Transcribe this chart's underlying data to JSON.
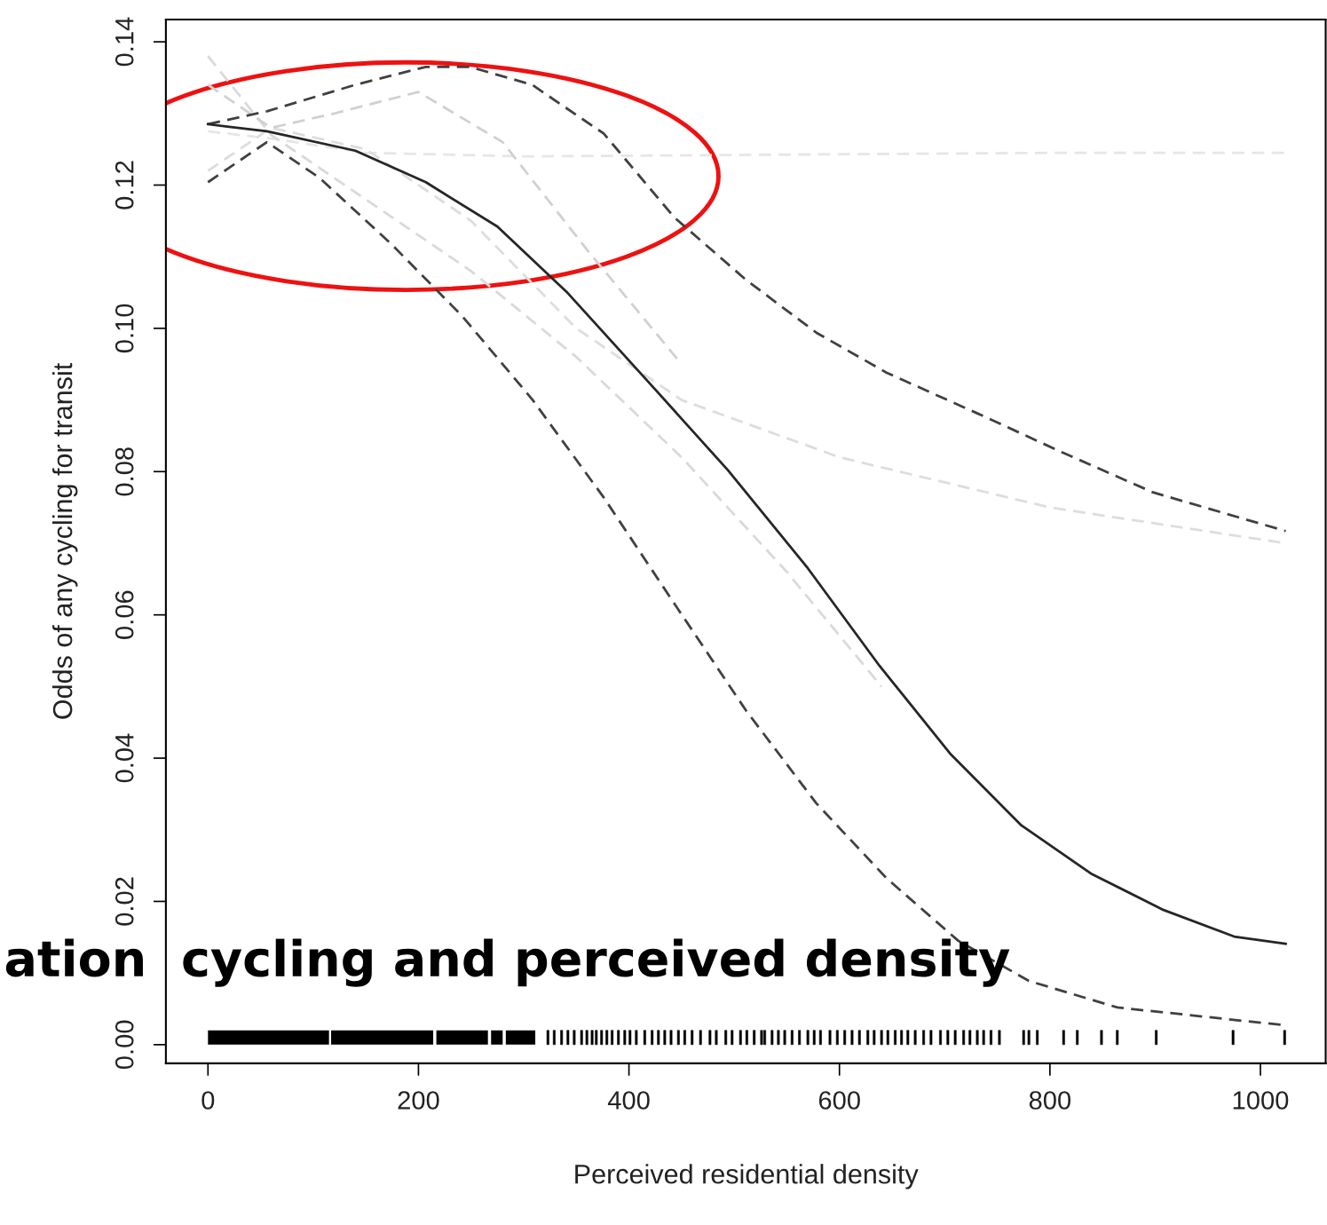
{
  "chart_data": {
    "type": "line",
    "xlabel": "Perceived residential density",
    "ylabel": "Odds of any cycling for transit",
    "annotations": [
      "ation  cycling and perceived density"
    ],
    "xlim": [
      -40,
      1062
    ],
    "ylim": [
      -0.0026,
      0.1431
    ],
    "xticks": [
      0,
      200,
      400,
      600,
      800,
      1000
    ],
    "yticks": [
      {
        "value": 0,
        "label": "0.00"
      },
      {
        "value": 0.02,
        "label": "0.02"
      },
      {
        "value": 0.04,
        "label": "0.04"
      },
      {
        "value": 0.06,
        "label": "0.06"
      },
      {
        "value": 0.08,
        "label": "0.08"
      },
      {
        "value": 0.1,
        "label": "0.10"
      },
      {
        "value": 0.12,
        "label": "0.12"
      },
      {
        "value": 0.14,
        "label": "0.14"
      }
    ],
    "grid": false,
    "series": [
      {
        "color": "#e6e6e6",
        "line_style": "dashed",
        "x": [
          0,
          60,
          150,
          300,
          500,
          800,
          1024
        ],
        "values": [
          0.1275,
          0.1265,
          0.1245,
          0.124,
          0.1242,
          0.1245,
          0.1245
        ]
      },
      {
        "color": "#d9d9d9",
        "line_style": "dashed",
        "x": [
          0,
          60,
          150,
          250,
          350,
          450,
          550,
          640
        ],
        "values": [
          0.138,
          0.127,
          0.118,
          0.108,
          0.096,
          0.082,
          0.066,
          0.05
        ]
      },
      {
        "color": "#dddddd",
        "line_style": "dashed",
        "x": [
          0,
          60,
          150,
          250,
          350,
          450,
          600,
          800,
          1024
        ],
        "values": [
          0.122,
          0.128,
          0.125,
          0.115,
          0.1,
          0.09,
          0.082,
          0.075,
          0.07
        ]
      },
      {
        "color": "#d0d0d0",
        "line_style": "dashed",
        "x": [
          0,
          60,
          120,
          200,
          280,
          360,
          450
        ],
        "values": [
          0.134,
          0.128,
          0.13,
          0.133,
          0.126,
          0.111,
          0.095
        ]
      },
      {
        "color": "#404040",
        "line_style": "dashed",
        "x": [
          0,
          56,
          140,
          207,
          249,
          308,
          376,
          443,
          511,
          578,
          645,
          730,
          813,
          898,
          1024
        ],
        "values": [
          0.1285,
          0.1303,
          0.134,
          0.1365,
          0.1365,
          0.134,
          0.1272,
          0.1155,
          0.1068,
          0.0994,
          0.0938,
          0.0882,
          0.0826,
          0.0771,
          0.0717
        ]
      },
      {
        "color": "#404040",
        "line_style": "dashed",
        "x": [
          0,
          56,
          106,
          174,
          241,
          308,
          376,
          443,
          511,
          578,
          645,
          713,
          780,
          864,
          1024
        ],
        "values": [
          0.1204,
          0.126,
          0.121,
          0.1118,
          0.1018,
          0.0901,
          0.0764,
          0.0616,
          0.0467,
          0.0337,
          0.0232,
          0.0145,
          0.0089,
          0.0052,
          0.0027
        ]
      },
      {
        "color": "#262626",
        "line_style": "solid",
        "x": [
          0,
          56,
          140,
          207,
          275,
          342,
          418,
          494,
          570,
          638,
          706,
          773,
          840,
          908,
          975,
          1024
        ],
        "values": [
          0.1285,
          0.1275,
          0.1248,
          0.1204,
          0.1142,
          0.1049,
          0.0926,
          0.0802,
          0.0665,
          0.0529,
          0.0405,
          0.0306,
          0.0238,
          0.0188,
          0.0151,
          0.0141
        ]
      },
      {
        "type": "area",
        "color": "#000000",
        "x": [
          0,
          115,
          116,
          117,
          214,
          215.5,
          217,
          266,
          267.5,
          269,
          280,
          281.5,
          283,
          311
        ],
        "values": [
          0.002,
          0.002,
          null,
          0.002,
          0.002,
          null,
          0.002,
          0.002,
          null,
          0.002,
          0.002,
          null,
          0.002,
          0.002
        ]
      },
      {
        "type": "bar",
        "color": "#000000",
        "x": [
          323,
          329,
          336,
          342,
          348,
          355,
          360,
          365,
          369,
          374,
          379,
          384,
          390,
          396,
          401,
          407,
          415,
          422,
          428,
          434,
          440,
          447,
          453,
          460,
          468,
          477,
          483,
          492,
          498,
          506,
          512,
          519,
          526,
          529,
          536,
          542,
          548,
          555,
          562,
          570,
          576,
          582,
          591,
          598,
          605,
          612,
          619,
          627,
          633,
          640,
          646,
          653,
          659,
          665,
          672,
          680,
          687,
          696,
          703,
          710,
          718,
          724,
          731,
          737,
          744,
          752,
          775,
          780,
          788,
          813,
          826,
          849,
          864,
          901,
          974,
          1023
        ],
        "values": [
          0.002,
          0.002,
          0.002,
          0.002,
          0.002,
          0.002,
          0.002,
          0.002,
          0.002,
          0.002,
          0.002,
          0.002,
          0.002,
          0.002,
          0.002,
          0.002,
          0.002,
          0.002,
          0.002,
          0.002,
          0.002,
          0.002,
          0.002,
          0.002,
          0.002,
          0.002,
          0.002,
          0.002,
          0.002,
          0.002,
          0.002,
          0.002,
          0.002,
          0.002,
          0.002,
          0.002,
          0.002,
          0.002,
          0.002,
          0.002,
          0.002,
          0.002,
          0.002,
          0.002,
          0.002,
          0.002,
          0.002,
          0.002,
          0.002,
          0.002,
          0.002,
          0.002,
          0.002,
          0.002,
          0.002,
          0.002,
          0.002,
          0.002,
          0.002,
          0.002,
          0.002,
          0.002,
          0.002,
          0.002,
          0.002,
          0.002,
          0.002,
          0.002,
          0.002,
          0.002,
          0.002,
          0.002,
          0.002,
          0.002,
          0.002,
          0.002
        ]
      }
    ]
  }
}
